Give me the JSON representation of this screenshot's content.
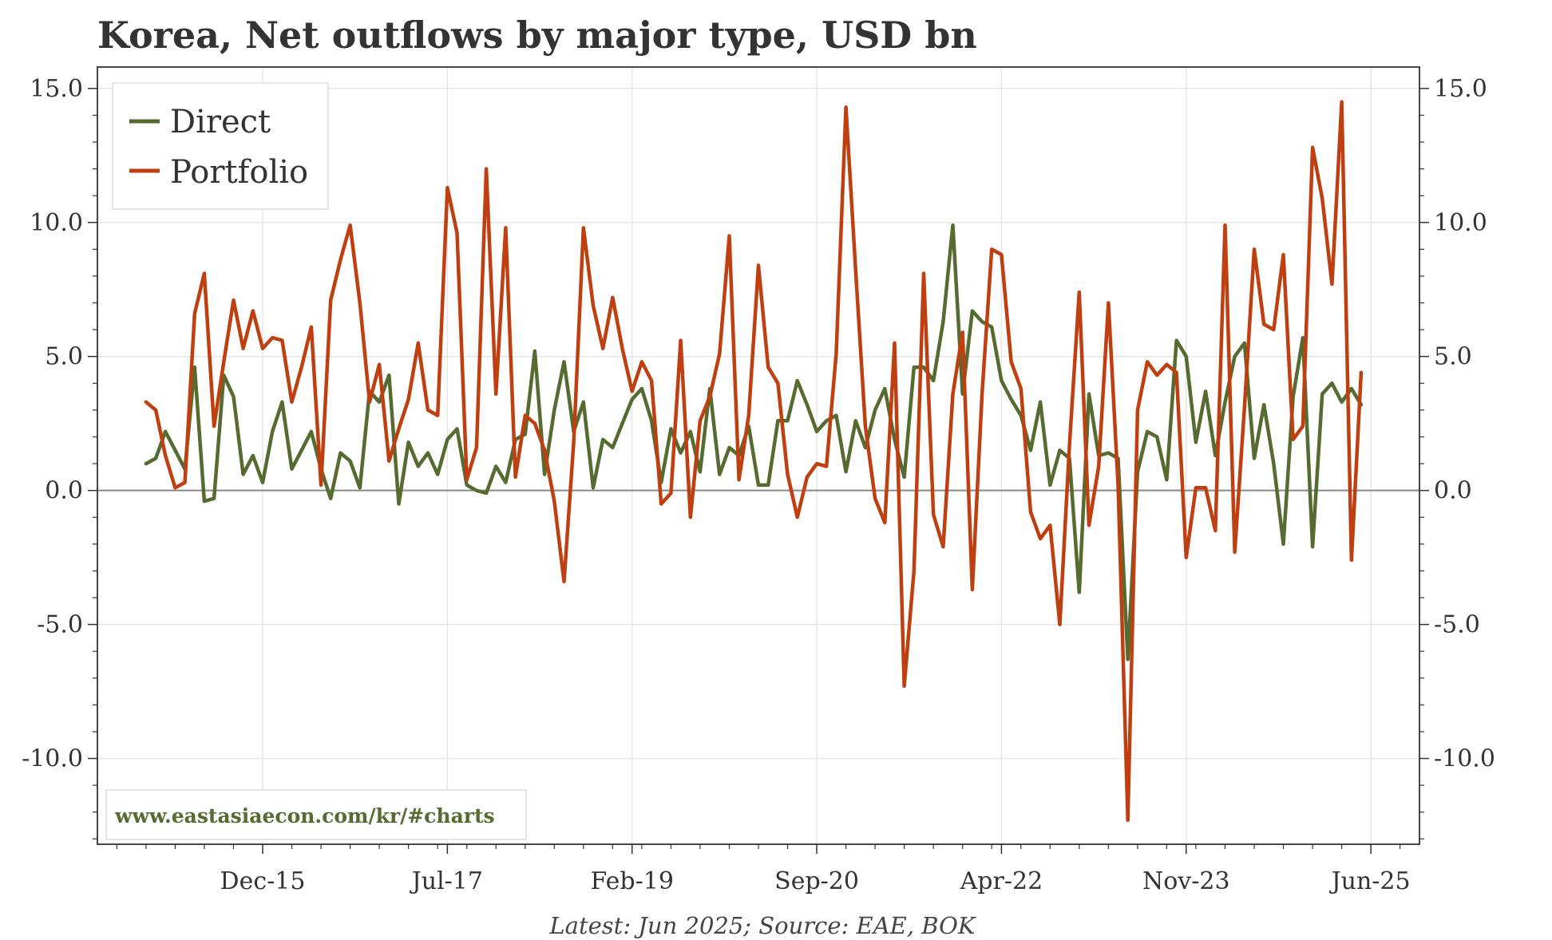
{
  "chart_data": {
    "type": "line",
    "title": "Korea, Net outflows by major type, USD bn",
    "source": "Latest: Jun 2025; Source: EAE, BOK",
    "watermark": "www.eastasiaecon.com/kr/#charts",
    "y_ticks": [
      "15.0",
      "10.0",
      "5.0",
      "0.0",
      "-5.0",
      "-10.0"
    ],
    "y_tick_values": [
      15,
      10,
      5,
      0,
      -5,
      -10
    ],
    "ylim": [
      -13.2,
      15.8
    ],
    "x_ticks": [
      "Dec-15",
      "Jul-17",
      "Feb-19",
      "Sep-20",
      "Apr-22",
      "Nov-23",
      "Jun-25"
    ],
    "x_tick_index": [
      12,
      31,
      50,
      69,
      88,
      107,
      126
    ],
    "x_minor_step": 3,
    "xlim": [
      -5,
      131
    ],
    "grid": true,
    "legend_position": "top-left",
    "colors": {
      "direct": "#556b2f",
      "portfolio": "#bf3f10",
      "zero_line": "#888888",
      "grid": "#e6e6e6",
      "axis": "#333333"
    },
    "series": [
      {
        "name": "Direct",
        "color": "#556b2f",
        "values": [
          1.0,
          1.2,
          2.2,
          1.5,
          0.8,
          4.6,
          -0.4,
          -0.3,
          4.3,
          3.5,
          0.6,
          1.3,
          0.3,
          2.2,
          3.3,
          0.8,
          1.5,
          2.2,
          0.8,
          -0.3,
          1.4,
          1.1,
          0.1,
          3.7,
          3.3,
          4.3,
          -0.5,
          1.8,
          0.9,
          1.4,
          0.6,
          1.9,
          2.3,
          0.2,
          0.0,
          -0.1,
          0.9,
          0.3,
          1.9,
          2.1,
          5.2,
          0.6,
          3.0,
          4.8,
          2.2,
          3.3,
          0.1,
          1.9,
          1.6,
          2.5,
          3.4,
          3.8,
          2.6,
          0.3,
          2.3,
          1.4,
          2.2,
          0.7,
          3.8,
          0.6,
          1.6,
          1.3,
          2.4,
          0.2,
          0.2,
          2.6,
          2.6,
          4.1,
          3.2,
          2.2,
          2.6,
          2.8,
          0.7,
          2.6,
          1.6,
          3.0,
          3.8,
          1.9,
          0.5,
          4.6,
          4.6,
          4.1,
          6.3,
          9.9,
          3.6,
          6.7,
          6.3,
          6.1,
          4.1,
          3.4,
          2.8,
          1.5,
          3.3,
          0.2,
          1.5,
          1.2,
          -3.8,
          3.6,
          1.3,
          1.4,
          1.2,
          -6.3,
          0.7,
          2.2,
          2.0,
          0.4,
          5.6,
          5.0,
          1.8,
          3.7,
          1.3,
          3.3,
          5.0,
          5.5,
          1.2,
          3.2,
          1.0,
          -2.0,
          3.5,
          5.7,
          -2.1,
          3.6,
          4.0,
          3.3,
          3.8,
          3.2
        ]
      },
      {
        "name": "Portfolio",
        "color": "#bf3f10",
        "values": [
          3.3,
          3.0,
          1.3,
          0.1,
          0.3,
          6.6,
          8.1,
          2.4,
          4.8,
          7.1,
          5.3,
          6.7,
          5.3,
          5.7,
          5.6,
          3.3,
          4.6,
          6.1,
          0.2,
          7.1,
          8.6,
          9.9,
          7.0,
          3.3,
          4.7,
          1.1,
          2.3,
          3.4,
          5.5,
          3.0,
          2.8,
          11.3,
          9.6,
          0.4,
          1.6,
          12.0,
          3.6,
          9.8,
          0.5,
          2.8,
          2.5,
          1.5,
          -0.4,
          -3.4,
          1.8,
          9.8,
          6.9,
          5.3,
          7.2,
          5.3,
          3.7,
          4.8,
          4.1,
          -0.5,
          -0.1,
          5.6,
          -1.0,
          2.6,
          3.5,
          5.1,
          9.5,
          0.4,
          2.8,
          8.4,
          4.6,
          4.0,
          0.6,
          -1.0,
          0.5,
          1.0,
          0.9,
          5.1,
          14.3,
          8.2,
          2.4,
          -0.3,
          -1.2,
          5.5,
          -7.3,
          -3.0,
          8.1,
          -0.9,
          -2.1,
          3.6,
          5.9,
          -3.7,
          3.6,
          9.0,
          8.8,
          4.8,
          3.8,
          -0.8,
          -1.8,
          -1.3,
          -5.0,
          1.7,
          7.4,
          -1.3,
          0.9,
          7.0,
          0.2,
          -12.3,
          3.0,
          4.8,
          4.3,
          4.7,
          4.4,
          -2.5,
          0.1,
          0.1,
          -1.5,
          9.9,
          -2.3,
          3.1,
          9.0,
          6.2,
          6.0,
          8.8,
          1.9,
          2.4,
          12.8,
          10.9,
          7.7,
          14.5,
          -2.6,
          4.4
        ]
      }
    ]
  }
}
